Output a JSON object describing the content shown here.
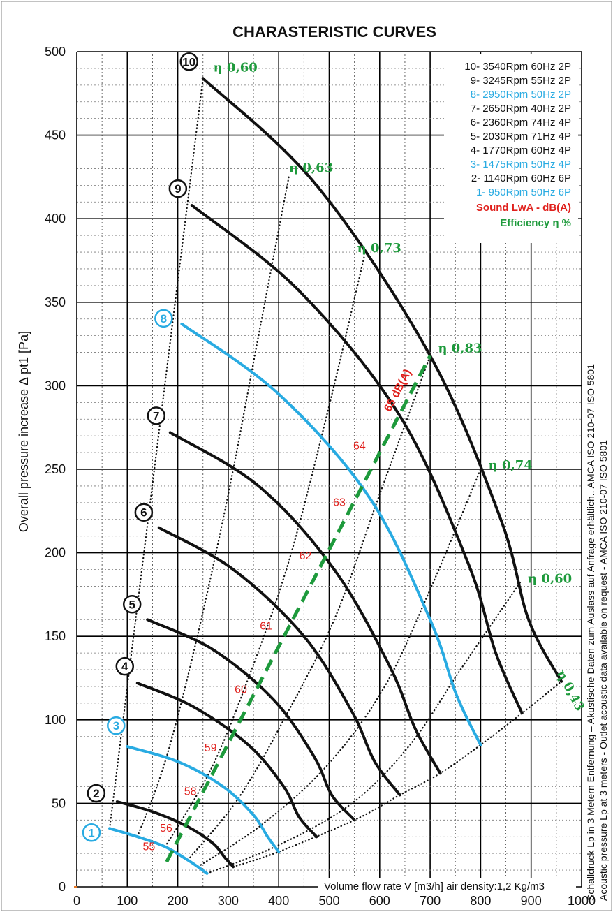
{
  "chart_data": {
    "type": "line",
    "title": "CHARASTERISTIC CURVES",
    "ylabel": "Overall pressure increase    Δ pt1 [Pa]",
    "xlabel": "Volume flow rate  V [m3/h] air density:1,2 Kg/m3",
    "xlim": [
      0,
      1000
    ],
    "ylim": [
      0,
      500
    ],
    "x_ticks": [
      "0",
      "100",
      "200",
      "300",
      "400",
      "500",
      "600",
      "700",
      "800",
      "900",
      "1000"
    ],
    "y_ticks": [
      "0",
      "50",
      "100",
      "150",
      "200",
      "250",
      "300",
      "350",
      "400",
      "450",
      "500"
    ],
    "grid": true,
    "legend_position": "top-right",
    "colors": {
      "black": "#111111",
      "blue": "#29abe2",
      "red": "#e0201c",
      "green": "#1e9a3c"
    },
    "series": [
      {
        "id": "1",
        "name": "1-   950Rpm 50Hz 6P",
        "color": "blue",
        "x": [
          65,
          120,
          175,
          220,
          240,
          258
        ],
        "y": [
          35,
          30,
          24,
          16,
          12,
          8
        ]
      },
      {
        "id": "2",
        "name": "2- 1140Rpm 60Hz 6P",
        "color": "black",
        "x": [
          80,
          150,
          220,
          270,
          292,
          310
        ],
        "y": [
          51,
          45,
          36,
          26,
          18,
          12
        ]
      },
      {
        "id": "3",
        "name": "3- 1475Rpm 50Hz 4P",
        "color": "blue",
        "x": [
          100,
          200,
          290,
          350,
          378,
          400
        ],
        "y": [
          84,
          75,
          60,
          43,
          30,
          21
        ]
      },
      {
        "id": "4",
        "name": "4- 1770Rpm 60Hz 4P",
        "color": "black",
        "x": [
          120,
          230,
          340,
          410,
          440,
          475
        ],
        "y": [
          122,
          108,
          85,
          60,
          42,
          30
        ]
      },
      {
        "id": "5",
        "name": "5- 2030Rpm 71Hz 4P",
        "color": "black",
        "x": [
          140,
          270,
          390,
          470,
          505,
          550
        ],
        "y": [
          160,
          142,
          112,
          78,
          55,
          40
        ]
      },
      {
        "id": "6",
        "name": "6- 2360Rpm 74Hz 4P",
        "color": "black",
        "x": [
          163,
          310,
          450,
          545,
          590,
          640
        ],
        "y": [
          215,
          190,
          150,
          105,
          75,
          55
        ]
      },
      {
        "id": "7",
        "name": "7- 2650Rpm 40Hz 2P",
        "color": "black",
        "x": [
          185,
          360,
          510,
          620,
          670,
          720
        ],
        "y": [
          272,
          240,
          190,
          132,
          95,
          68
        ]
      },
      {
        "id": "8",
        "name": "8- 2950Rpm 50Hz 2P",
        "color": "blue",
        "x": [
          208,
          400,
          580,
          700,
          752,
          800
        ],
        "y": [
          337,
          295,
          233,
          160,
          115,
          85
        ]
      },
      {
        "id": "9",
        "name": "9- 3245Rpm 55Hz 2P",
        "color": "black",
        "x": [
          228,
          440,
          640,
          775,
          830,
          882
        ],
        "y": [
          408,
          357,
          282,
          194,
          140,
          104
        ]
      },
      {
        "id": "10",
        "name": "10- 3540Rpm 60Hz 2P",
        "color": "black",
        "x": [
          250,
          475,
          700,
          840,
          895,
          960
        ],
        "y": [
          484,
          420,
          318,
          220,
          160,
          123
        ]
      }
    ],
    "efficiency_lines": [
      {
        "label": "η 0,60",
        "x": [
          65,
          250
        ],
        "y": [
          35,
          484
        ]
      },
      {
        "label": "η 0,63",
        "x": [
          120,
          175,
          235,
          300,
          360,
          420
        ],
        "y": [
          30,
          75,
          145,
          235,
          330,
          425
        ]
      },
      {
        "label": "η 0,73",
        "x": [
          175,
          265,
          340,
          420,
          495,
          570
        ],
        "y": [
          24,
          70,
          125,
          195,
          282,
          378
        ]
      },
      {
        "label": "η 0,83",
        "x": [
          220,
          320,
          410,
          510,
          600,
          700
        ],
        "y": [
          16,
          53,
          100,
          160,
          235,
          318
        ]
      },
      {
        "label": "η 0,74",
        "x": [
          240,
          370,
          500,
          610,
          700,
          800
        ],
        "y": [
          12,
          38,
          74,
          120,
          178,
          250
        ]
      },
      {
        "label": "η 0,60",
        "x": [
          258,
          400,
          545,
          660,
          760,
          880
        ],
        "y": [
          8,
          25,
          50,
          85,
          130,
          183
        ]
      },
      {
        "label": "η 0,43",
        "x": [
          310,
          400,
          550,
          640,
          720,
          800,
          882,
          960
        ],
        "y": [
          12,
          21,
          40,
          55,
          68,
          85,
          104,
          123
        ]
      }
    ],
    "sound_line": {
      "label": "65 dB(A)",
      "x": [
        178,
        700
      ],
      "y": [
        15,
        318
      ],
      "points": [
        {
          "label": "55",
          "x": 143,
          "y": 22
        },
        {
          "label": "56",
          "x": 177,
          "y": 33
        },
        {
          "label": "58",
          "x": 225,
          "y": 55
        },
        {
          "label": "59",
          "x": 265,
          "y": 81
        },
        {
          "label": "60",
          "x": 325,
          "y": 116
        },
        {
          "label": "61",
          "x": 375,
          "y": 154
        },
        {
          "label": "62",
          "x": 453,
          "y": 196
        },
        {
          "label": "63",
          "x": 520,
          "y": 228
        },
        {
          "label": "64",
          "x": 560,
          "y": 262
        }
      ]
    },
    "legend": [
      {
        "text": "10- 3540Rpm 60Hz 2P",
        "color": "black"
      },
      {
        "text": "9- 3245Rpm 55Hz 2P",
        "color": "black"
      },
      {
        "text": "8- 2950Rpm 50Hz 2P",
        "color": "blue"
      },
      {
        "text": "7- 2650Rpm 40Hz 2P",
        "color": "black"
      },
      {
        "text": "6- 2360Rpm 74Hz 4P",
        "color": "black"
      },
      {
        "text": "5- 2030Rpm 71Hz 4P",
        "color": "black"
      },
      {
        "text": "4- 1770Rpm 60Hz 4P",
        "color": "black"
      },
      {
        "text": "3- 1475Rpm 50Hz 4P",
        "color": "blue"
      },
      {
        "text": "2- 1140Rpm 60Hz 6P",
        "color": "black"
      },
      {
        "text": "1-   950Rpm 50Hz 6P",
        "color": "blue"
      },
      {
        "text": "Sound LwA - dB(A)",
        "color": "red"
      },
      {
        "text": "Efficiency η %",
        "color": "green"
      }
    ],
    "side_notes": [
      "Schalldruck Lp in 3 Metern Entfernung – Akustische Daten zum Auslass auf Anfrage erhältlich..  AMCA ISO 210-07  ISO 5801",
      "Acoustic pressure Lp at 3 meters - Outlet acoustic data available on request - AMCA ISO 210-07 ISO 5801"
    ]
  }
}
